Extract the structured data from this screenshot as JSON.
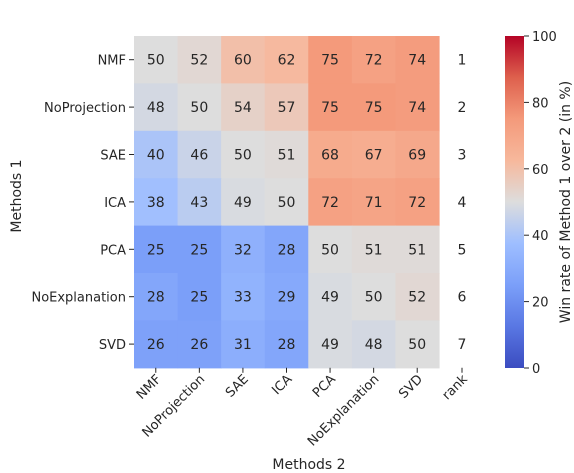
{
  "chart_data": {
    "type": "heatmap",
    "rows": [
      "NMF",
      "NoProjection",
      "SAE",
      "ICA",
      "PCA",
      "NoExplanation",
      "SVD"
    ],
    "columns": [
      "NMF",
      "NoProjection",
      "SAE",
      "ICA",
      "PCA",
      "NoExplanation",
      "SVD"
    ],
    "values": [
      [
        50,
        52,
        60,
        62,
        75,
        72,
        74
      ],
      [
        48,
        50,
        54,
        57,
        75,
        75,
        74
      ],
      [
        40,
        46,
        50,
        51,
        68,
        67,
        69
      ],
      [
        38,
        43,
        49,
        50,
        72,
        71,
        72
      ],
      [
        25,
        25,
        32,
        28,
        50,
        51,
        51
      ],
      [
        28,
        25,
        33,
        29,
        49,
        50,
        52
      ],
      [
        26,
        26,
        31,
        28,
        49,
        48,
        50
      ]
    ],
    "rank_label": "rank",
    "ranks": [
      1,
      2,
      3,
      4,
      5,
      6,
      7
    ],
    "xlabel": "Methods 2",
    "ylabel": "Methods 1",
    "colorbar": {
      "label": "Win rate of Method 1 over 2 (in %)",
      "range": [
        0,
        100
      ],
      "ticks": [
        0,
        20,
        40,
        60,
        80,
        100
      ],
      "colormap": "coolwarm",
      "low_color": "#3b4cc0",
      "mid_color": "#dddddd",
      "high_color": "#b40426"
    }
  }
}
